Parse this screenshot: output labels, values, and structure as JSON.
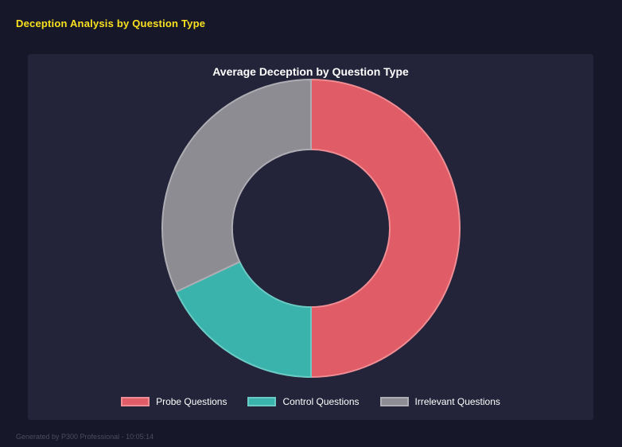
{
  "page": {
    "title": "Deception Analysis by Question Type",
    "footer": "Generated by P300 Professional - 10:05:14"
  },
  "colors": {
    "background": "#17172a",
    "panel": "#232339",
    "title_accent": "#f8e11e",
    "legend_text": "#ffffff"
  },
  "chart_data": {
    "type": "pie",
    "subtype": "donut",
    "title": "Average Deception by Question Type",
    "inner_radius_pct": 53,
    "start_angle_deg": 0,
    "direction": "clockwise",
    "legend_position": "bottom",
    "categories": [
      "Probe Questions",
      "Control Questions",
      "Irrelevant Questions"
    ],
    "values": [
      50,
      18,
      32
    ],
    "units": "percent (estimated share of ring)",
    "segments": [
      {
        "label": "Probe Questions",
        "value": 50,
        "color": "#e05c66",
        "border": "#ef8d95"
      },
      {
        "label": "Control Questions",
        "value": 18,
        "color": "#39b3ab",
        "border": "#6bcbc4"
      },
      {
        "label": "Irrelevant Questions",
        "value": 32,
        "color": "#8c8c92",
        "border": "#adadb3"
      }
    ]
  }
}
